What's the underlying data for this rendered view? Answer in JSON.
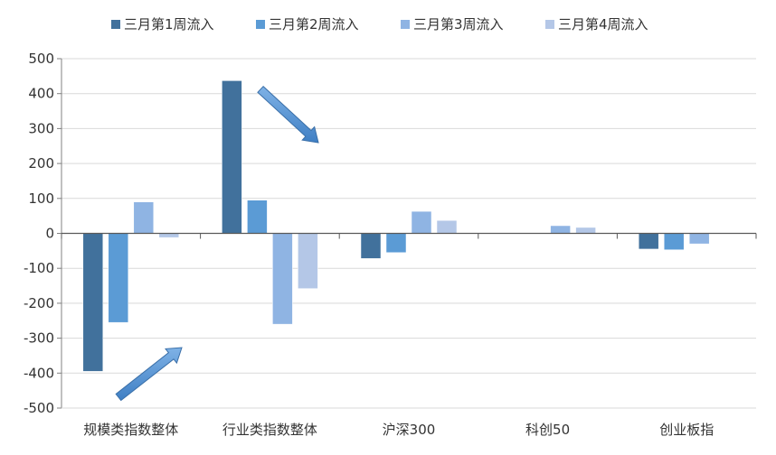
{
  "chart_data": {
    "type": "bar",
    "title": "",
    "xlabel": "",
    "ylabel": "",
    "ylim": [
      -500,
      500
    ],
    "yticks": [
      500,
      400,
      300,
      200,
      100,
      0,
      -100,
      -200,
      -300,
      -400,
      -500
    ],
    "grid": true,
    "legend_position": "top",
    "categories": [
      "规模类指数整体",
      "行业类指数整体",
      "沪深300",
      "科创50",
      "创业板指"
    ],
    "series": [
      {
        "name": "三月第1周流入",
        "color": "#41719c",
        "values": [
          -395,
          437,
          -72,
          0,
          -45
        ]
      },
      {
        "name": "三月第2周流入",
        "color": "#5b9bd5",
        "values": [
          -255,
          95,
          -55,
          0,
          -47
        ]
      },
      {
        "name": "三月第3周流入",
        "color": "#8fb4e3",
        "values": [
          90,
          -260,
          63,
          22,
          -30
        ]
      },
      {
        "name": "三月第4周流入",
        "color": "#b4c7e7",
        "values": [
          -12,
          -158,
          37,
          17,
          0
        ]
      }
    ],
    "annotations": [
      {
        "type": "arrow",
        "category": "行业类指数整体",
        "direction": "down",
        "color": "#5b9bd5"
      },
      {
        "type": "arrow",
        "category": "规模类指数整体",
        "direction": "up",
        "color": "#5b9bd5"
      }
    ]
  }
}
